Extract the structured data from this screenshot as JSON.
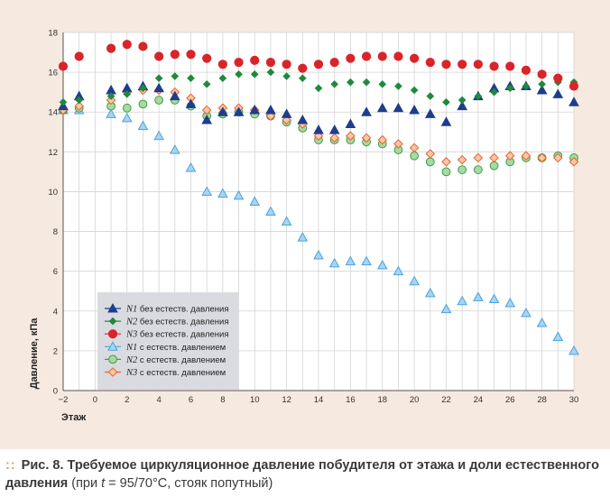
{
  "chart_data": {
    "type": "scatter",
    "xlabel": "Этаж",
    "ylabel": "Давление, кПа",
    "xlim": [
      -2,
      30
    ],
    "ylim": [
      0,
      18
    ],
    "x_ticks": [
      -2,
      0,
      2,
      4,
      6,
      8,
      10,
      12,
      14,
      16,
      18,
      20,
      22,
      24,
      26,
      28,
      30
    ],
    "y_ticks": [
      0,
      2,
      4,
      6,
      8,
      10,
      12,
      14,
      16,
      18
    ],
    "grid": true,
    "legend_position": "bottom-left",
    "series": [
      {
        "name": "N1 без естеств. давления",
        "italic_prefix": "N1",
        "label_rest": " без естеств. давления",
        "marker": "triangle-filled",
        "color": "#1f3d8c",
        "x": [
          -2,
          -1,
          1,
          2,
          3,
          4,
          5,
          6,
          7,
          8,
          9,
          10,
          11,
          12,
          13,
          14,
          15,
          16,
          17,
          18,
          19,
          20,
          21,
          22,
          23,
          24,
          25,
          26,
          27,
          28,
          29,
          30
        ],
        "y": [
          14.3,
          14.8,
          15.1,
          15.2,
          15.3,
          15.2,
          14.8,
          14.4,
          13.6,
          14.0,
          14.0,
          14.1,
          14.1,
          13.9,
          13.6,
          13.1,
          13.1,
          13.4,
          14.0,
          14.2,
          14.2,
          14.1,
          13.9,
          13.5,
          14.3,
          14.8,
          15.2,
          15.3,
          15.3,
          15.1,
          14.9,
          14.5
        ]
      },
      {
        "name": "N2 без естеств. давления",
        "italic_prefix": "N2",
        "label_rest": " без естеств. давления",
        "marker": "diamond-filled",
        "color": "#1e8a3c",
        "x": [
          -2,
          -1,
          1,
          2,
          3,
          4,
          5,
          6,
          7,
          8,
          9,
          10,
          11,
          12,
          13,
          14,
          15,
          16,
          17,
          18,
          19,
          20,
          21,
          22,
          23,
          24,
          25,
          26,
          27,
          28,
          29,
          30
        ],
        "y": [
          14.5,
          14.6,
          14.8,
          14.9,
          15.2,
          15.7,
          15.8,
          15.7,
          15.4,
          15.7,
          15.9,
          15.9,
          16.0,
          15.8,
          15.7,
          15.2,
          15.4,
          15.5,
          15.5,
          15.4,
          15.3,
          15.1,
          14.8,
          14.5,
          14.6,
          14.8,
          15.0,
          15.2,
          15.3,
          15.4,
          15.5,
          15.5
        ]
      },
      {
        "name": "N3 без естеств. давления",
        "italic_prefix": "N3",
        "label_rest": " без естеств. давления",
        "marker": "circle-filled",
        "color": "#d9252a",
        "x": [
          -2,
          -1,
          1,
          2,
          3,
          4,
          5,
          6,
          7,
          8,
          9,
          10,
          11,
          12,
          13,
          14,
          15,
          16,
          17,
          18,
          19,
          20,
          21,
          22,
          23,
          24,
          25,
          26,
          27,
          28,
          29,
          30
        ],
        "y": [
          16.3,
          16.8,
          17.2,
          17.4,
          17.3,
          16.8,
          16.9,
          16.9,
          16.7,
          16.4,
          16.5,
          16.6,
          16.5,
          16.4,
          16.2,
          16.4,
          16.5,
          16.7,
          16.8,
          16.8,
          16.8,
          16.7,
          16.5,
          16.4,
          16.4,
          16.4,
          16.3,
          16.3,
          16.1,
          15.9,
          15.7,
          15.3
        ]
      },
      {
        "name": "N1 с естеств. давлением",
        "italic_prefix": "N1",
        "label_rest": " с естеств. давлением",
        "marker": "triangle-open",
        "color": "#4aa3df",
        "fill": "#a9d3f2",
        "x": [
          -2,
          -1,
          1,
          2,
          3,
          4,
          5,
          6,
          7,
          8,
          9,
          10,
          11,
          12,
          13,
          14,
          15,
          16,
          17,
          18,
          19,
          20,
          21,
          22,
          23,
          24,
          25,
          26,
          27,
          28,
          29,
          30
        ],
        "y": [
          14.1,
          14.1,
          13.9,
          13.7,
          13.3,
          12.8,
          12.1,
          11.2,
          10.0,
          9.9,
          9.8,
          9.5,
          9.0,
          8.5,
          7.7,
          6.8,
          6.4,
          6.5,
          6.5,
          6.3,
          6.0,
          5.5,
          4.9,
          4.1,
          4.5,
          4.7,
          4.6,
          4.4,
          3.9,
          3.4,
          2.7,
          2.0
        ]
      },
      {
        "name": "N2 с естеств. давлением",
        "italic_prefix": "N2",
        "label_rest": " с естеств. давлением",
        "marker": "circle-open",
        "color": "#3e9e4a",
        "fill": "#a8d9a2",
        "x": [
          -2,
          -1,
          1,
          2,
          3,
          4,
          5,
          6,
          7,
          8,
          9,
          10,
          11,
          12,
          13,
          14,
          15,
          16,
          17,
          18,
          19,
          20,
          21,
          22,
          23,
          24,
          25,
          26,
          27,
          28,
          29,
          30
        ],
        "y": [
          14.1,
          14.2,
          14.3,
          14.2,
          14.4,
          14.6,
          14.6,
          14.3,
          13.8,
          13.9,
          14.0,
          13.9,
          13.8,
          13.5,
          13.2,
          12.6,
          12.6,
          12.6,
          12.5,
          12.4,
          12.1,
          11.8,
          11.5,
          11.0,
          11.1,
          11.1,
          11.3,
          11.5,
          11.7,
          11.7,
          11.8,
          11.7
        ]
      },
      {
        "name": "N3 с естеств. давлением",
        "italic_prefix": "N3",
        "label_rest": " с естеств. давлением",
        "marker": "diamond-open",
        "color": "#e8622a",
        "fill": "#f9c7a8",
        "x": [
          -2,
          -1,
          1,
          2,
          3,
          4,
          5,
          6,
          7,
          8,
          9,
          10,
          11,
          12,
          13,
          14,
          15,
          16,
          17,
          18,
          19,
          20,
          21,
          22,
          23,
          24,
          25,
          26,
          27,
          28,
          29,
          30
        ],
        "y": [
          14.1,
          14.3,
          14.6,
          15.0,
          15.1,
          15.1,
          15.0,
          14.7,
          14.1,
          14.2,
          14.2,
          14.1,
          13.8,
          13.6,
          13.4,
          12.8,
          12.7,
          12.8,
          12.7,
          12.6,
          12.4,
          12.2,
          11.9,
          11.5,
          11.6,
          11.7,
          11.7,
          11.8,
          11.8,
          11.7,
          11.7,
          11.5
        ]
      }
    ]
  },
  "caption": {
    "marker": "::",
    "lead": "Рис. 8.",
    "text": " Требуемое циркуляционное давление побудителя от этажа и доли естественного давления",
    "note_prefix": " (при ",
    "note_var": "t",
    "note_suffix": " = 95/70°C, стояк попутный)"
  }
}
